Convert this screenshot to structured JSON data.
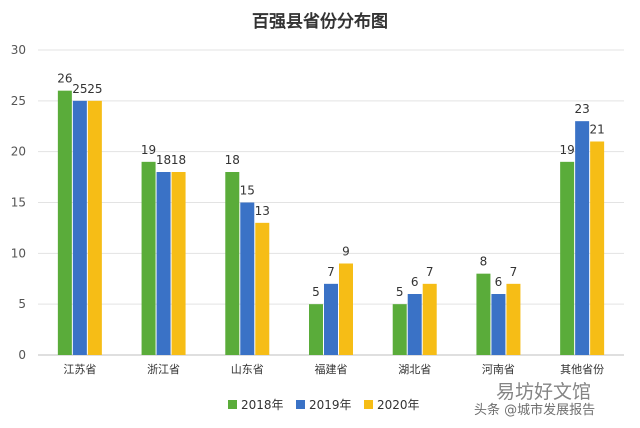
{
  "chart_data": {
    "type": "bar",
    "title": "百强县省份分布图",
    "categories": [
      "江苏省",
      "浙江省",
      "山东省",
      "福建省",
      "湖北省",
      "河南省",
      "其他省份"
    ],
    "series": [
      {
        "name": "2018年",
        "color": "#5aac3a",
        "values": [
          26,
          19,
          18,
          5,
          5,
          8,
          19
        ]
      },
      {
        "name": "2019年",
        "color": "#3a72c6",
        "values": [
          25,
          18,
          15,
          7,
          6,
          6,
          23
        ]
      },
      {
        "name": "2020年",
        "color": "#f6bd16",
        "values": [
          25,
          18,
          13,
          9,
          7,
          7,
          21
        ]
      }
    ],
    "ylim": [
      0,
      30
    ],
    "yticks": [
      0,
      5,
      10,
      15,
      20,
      25,
      30
    ],
    "grid": true,
    "legend_position": "bottom"
  },
  "watermark": {
    "line1": "易坊好文馆",
    "line2": "头条 @城市发展报告"
  }
}
